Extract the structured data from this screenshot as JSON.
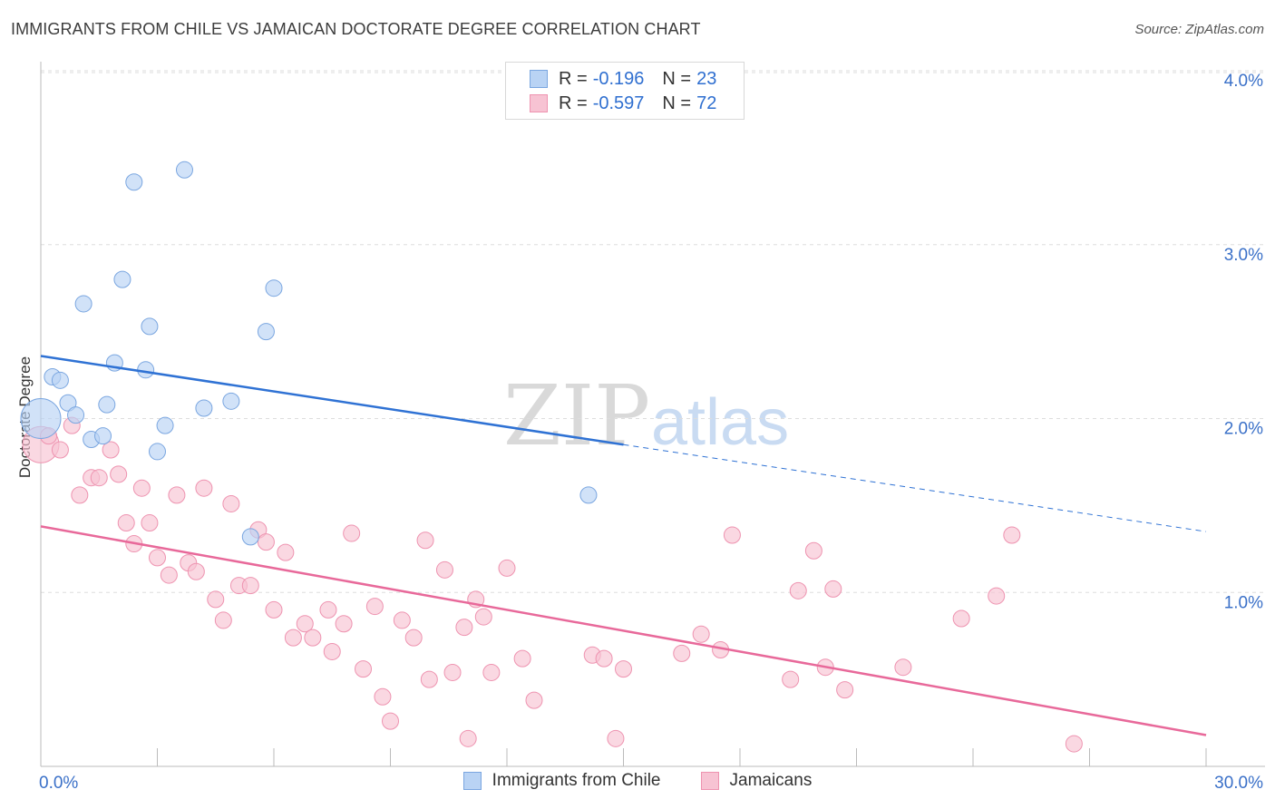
{
  "title": "IMMIGRANTS FROM CHILE VS JAMAICAN DOCTORATE DEGREE CORRELATION CHART",
  "source": "Source: ZipAtlas.com",
  "watermark": {
    "zip": "ZIP",
    "atlas": "atlas"
  },
  "legend_top": {
    "rows": [
      {
        "r_label": "R =",
        "r_value": "-0.196",
        "n_label": "N =",
        "n_value": "23"
      },
      {
        "r_label": "R =",
        "r_value": "-0.597",
        "n_label": "N =",
        "n_value": "72"
      }
    ]
  },
  "colors": {
    "blue_fill": "#b9d3f4",
    "blue_stroke": "#7aa6e0",
    "blue_line": "#2f72d4",
    "pink_fill": "#f7c3d3",
    "pink_stroke": "#ee93b0",
    "pink_line": "#e8699a",
    "axis_label": "#3a70c8",
    "grid": "#dddddd"
  },
  "chart_data": {
    "type": "scatter",
    "title": "IMMIGRANTS FROM CHILE VS JAMAICAN DOCTORATE DEGREE CORRELATION CHART",
    "xlabel": "",
    "ylabel": "Doctorate Degree",
    "xlim": [
      0,
      30
    ],
    "ylim": [
      0,
      4.0
    ],
    "x_tick_labels": [
      "0.0%",
      "30.0%"
    ],
    "y_tick_labels": [
      "1.0%",
      "2.0%",
      "3.0%",
      "4.0%"
    ],
    "y_ticks": [
      1.0,
      2.0,
      3.0,
      4.0
    ],
    "grid": true,
    "legend_placement": "top-center",
    "series": [
      {
        "name": "Immigrants from Chile",
        "color": "#b9d3f4",
        "r": -0.196,
        "n": 23,
        "points": [
          [
            0.0,
            2.0
          ],
          [
            0.3,
            2.24
          ],
          [
            0.5,
            2.22
          ],
          [
            0.7,
            2.09
          ],
          [
            0.9,
            2.02
          ],
          [
            1.1,
            2.66
          ],
          [
            1.3,
            1.88
          ],
          [
            1.6,
            1.9
          ],
          [
            1.7,
            2.08
          ],
          [
            1.9,
            2.32
          ],
          [
            2.1,
            2.8
          ],
          [
            2.4,
            3.36
          ],
          [
            2.7,
            2.28
          ],
          [
            2.8,
            2.53
          ],
          [
            3.0,
            1.81
          ],
          [
            3.2,
            1.96
          ],
          [
            3.7,
            3.43
          ],
          [
            4.2,
            2.06
          ],
          [
            4.9,
            2.1
          ],
          [
            5.4,
            1.32
          ],
          [
            5.8,
            2.5
          ],
          [
            6.0,
            2.75
          ],
          [
            14.1,
            1.56
          ]
        ],
        "trend": {
          "x": [
            0,
            15
          ],
          "y": [
            2.36,
            1.85
          ],
          "dashed_to": [
            30,
            1.35
          ]
        }
      },
      {
        "name": "Jamaicans",
        "color": "#f7c3d3",
        "r": -0.597,
        "n": 72,
        "points": [
          [
            0.0,
            1.85
          ],
          [
            0.2,
            1.9
          ],
          [
            0.5,
            1.82
          ],
          [
            0.8,
            1.96
          ],
          [
            1.0,
            1.56
          ],
          [
            1.3,
            1.66
          ],
          [
            1.5,
            1.66
          ],
          [
            1.8,
            1.82
          ],
          [
            2.0,
            1.68
          ],
          [
            2.2,
            1.4
          ],
          [
            2.4,
            1.28
          ],
          [
            2.6,
            1.6
          ],
          [
            2.8,
            1.4
          ],
          [
            3.0,
            1.2
          ],
          [
            3.3,
            1.1
          ],
          [
            3.5,
            1.56
          ],
          [
            3.8,
            1.17
          ],
          [
            4.0,
            1.12
          ],
          [
            4.2,
            1.6
          ],
          [
            4.5,
            0.96
          ],
          [
            4.7,
            0.84
          ],
          [
            4.9,
            1.51
          ],
          [
            5.1,
            1.04
          ],
          [
            5.4,
            1.04
          ],
          [
            5.6,
            1.36
          ],
          [
            5.8,
            1.29
          ],
          [
            6.0,
            0.9
          ],
          [
            6.3,
            1.23
          ],
          [
            6.5,
            0.74
          ],
          [
            6.8,
            0.82
          ],
          [
            7.0,
            0.74
          ],
          [
            7.4,
            0.9
          ],
          [
            7.5,
            0.66
          ],
          [
            7.8,
            0.82
          ],
          [
            8.0,
            1.34
          ],
          [
            8.3,
            0.56
          ],
          [
            8.6,
            0.92
          ],
          [
            8.8,
            0.4
          ],
          [
            9.0,
            0.26
          ],
          [
            9.3,
            0.84
          ],
          [
            9.6,
            0.74
          ],
          [
            9.9,
            1.3
          ],
          [
            10.0,
            0.5
          ],
          [
            10.4,
            1.13
          ],
          [
            10.6,
            0.54
          ],
          [
            10.9,
            0.8
          ],
          [
            11.0,
            0.16
          ],
          [
            11.2,
            0.96
          ],
          [
            11.4,
            0.86
          ],
          [
            11.6,
            0.54
          ],
          [
            12.0,
            1.14
          ],
          [
            12.4,
            0.62
          ],
          [
            12.7,
            0.38
          ],
          [
            14.2,
            0.64
          ],
          [
            14.5,
            0.62
          ],
          [
            14.8,
            0.16
          ],
          [
            15.0,
            0.56
          ],
          [
            16.5,
            0.65
          ],
          [
            17.0,
            0.76
          ],
          [
            17.5,
            0.67
          ],
          [
            17.8,
            1.33
          ],
          [
            19.3,
            0.5
          ],
          [
            19.5,
            1.01
          ],
          [
            19.9,
            1.24
          ],
          [
            20.2,
            0.57
          ],
          [
            20.4,
            1.02
          ],
          [
            20.7,
            0.44
          ],
          [
            22.2,
            0.57
          ],
          [
            23.7,
            0.85
          ],
          [
            24.6,
            0.98
          ],
          [
            25.0,
            1.33
          ],
          [
            26.6,
            0.13
          ]
        ],
        "trend": {
          "x": [
            0,
            30
          ],
          "y": [
            1.38,
            0.18
          ]
        }
      }
    ]
  },
  "legend_bottom": {
    "items": [
      {
        "label": "Immigrants from Chile"
      },
      {
        "label": "Jamaicans"
      }
    ]
  }
}
